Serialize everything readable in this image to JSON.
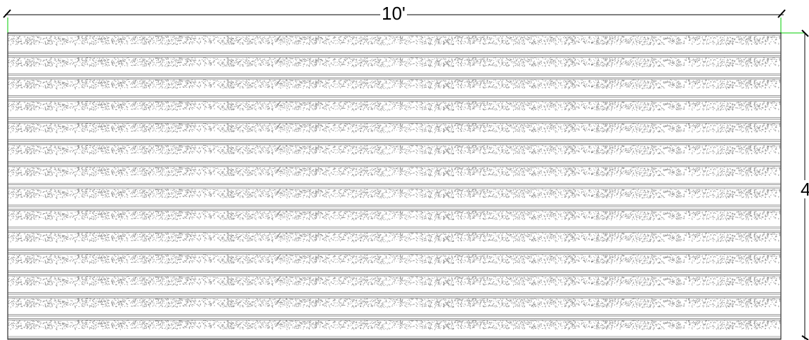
{
  "dimensions": {
    "width_label": "10'",
    "height_label": "4"
  },
  "panel": {
    "board_count": 14
  },
  "colors": {
    "line": "#000000",
    "extension_line": "#00cc00",
    "stipple": "#8a8a8a",
    "board_line": "#555555"
  }
}
